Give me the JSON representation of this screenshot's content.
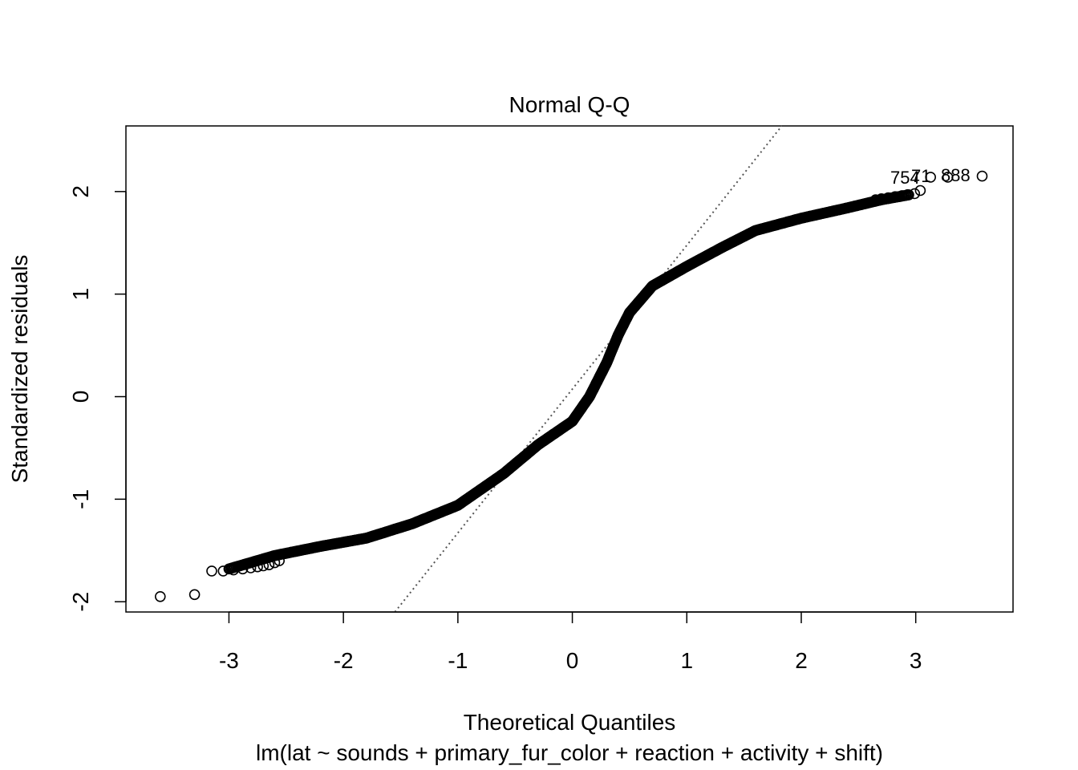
{
  "chart_data": {
    "type": "scatter",
    "title": "Normal Q-Q",
    "xlabel": "Theoretical Quantiles",
    "ylabel": "Standardized residuals",
    "caption": "lm(lat ~ sounds + primary_fur_color + reaction + activity + shift)",
    "xlim": [
      -3.9,
      3.85
    ],
    "ylim": [
      -2.1,
      2.64
    ],
    "xticks": [
      -3,
      -2,
      -1,
      0,
      1,
      2,
      3
    ],
    "yticks": [
      -2,
      -1,
      0,
      1,
      2
    ],
    "grid": false,
    "legend": "none",
    "reference_line": {
      "style": "dotted",
      "color": "#555555",
      "points": [
        [
          -1.55,
          -2.1
        ],
        [
          1.83,
          2.64
        ]
      ]
    },
    "outlier_labels": [
      "754",
      "71",
      "888"
    ],
    "curve_knots": [
      [
        -3.0,
        -1.68
      ],
      [
        -2.6,
        -1.55
      ],
      [
        -2.2,
        -1.46
      ],
      [
        -1.8,
        -1.38
      ],
      [
        -1.4,
        -1.24
      ],
      [
        -1.0,
        -1.06
      ],
      [
        -0.6,
        -0.75
      ],
      [
        -0.3,
        -0.47
      ],
      [
        0.0,
        -0.24
      ],
      [
        0.15,
        0.0
      ],
      [
        0.3,
        0.33
      ],
      [
        0.4,
        0.6
      ],
      [
        0.5,
        0.82
      ],
      [
        0.7,
        1.08
      ],
      [
        1.0,
        1.27
      ],
      [
        1.3,
        1.45
      ],
      [
        1.6,
        1.62
      ],
      [
        2.0,
        1.74
      ],
      [
        2.4,
        1.84
      ],
      [
        2.7,
        1.92
      ],
      [
        2.95,
        1.97
      ]
    ],
    "tail_points": [
      [
        -3.6,
        -1.95
      ],
      [
        -3.3,
        -1.93
      ],
      [
        -3.15,
        -1.7
      ],
      [
        -3.05,
        -1.7
      ],
      [
        -2.96,
        -1.69
      ],
      [
        -2.88,
        -1.68
      ],
      [
        -2.81,
        -1.67
      ],
      [
        -2.75,
        -1.66
      ],
      [
        -2.7,
        -1.65
      ],
      [
        -2.65,
        -1.64
      ],
      [
        -2.6,
        -1.62
      ],
      [
        -2.56,
        -1.6
      ],
      [
        2.65,
        1.92
      ],
      [
        2.7,
        1.93
      ],
      [
        2.76,
        1.94
      ],
      [
        2.82,
        1.95
      ],
      [
        2.88,
        1.96
      ],
      [
        2.93,
        1.97
      ],
      [
        2.99,
        1.98
      ],
      [
        3.04,
        2.01
      ],
      [
        3.13,
        2.14
      ],
      [
        3.28,
        2.14
      ],
      [
        3.58,
        2.15
      ]
    ],
    "point_color": "#000000"
  }
}
